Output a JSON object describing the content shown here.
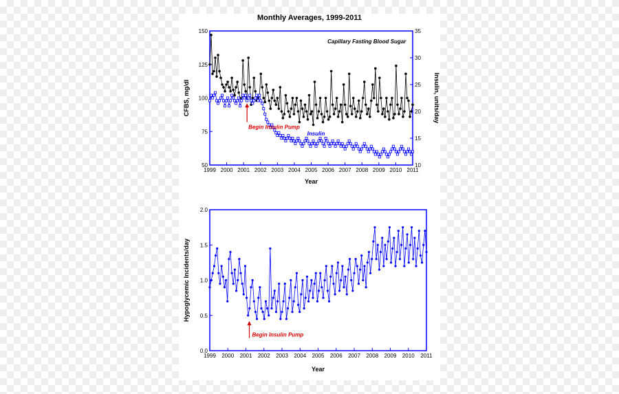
{
  "title": "Monthly Averages, 1999-2011",
  "x_years": [
    1999,
    2000,
    2001,
    2002,
    2003,
    2004,
    2005,
    2006,
    2007,
    2008,
    2009,
    2010,
    2011
  ],
  "top_chart": {
    "border_color": "#0000ff",
    "bg": "#ffffff",
    "x_label": "Year",
    "left_y": {
      "label": "CFBS, mg/dl",
      "min": 50,
      "max": 150,
      "ticks": [
        50,
        75,
        100,
        125,
        150
      ]
    },
    "right_y": {
      "label": "Insulin, units/day",
      "min": 10,
      "max": 35,
      "ticks": [
        10,
        15,
        20,
        25,
        30,
        35
      ]
    },
    "series_cfbs": {
      "label": "Capillary Fasting Blood Sugar",
      "color": "#000000",
      "marker": "filled-circle",
      "values": [
        125,
        147,
        118,
        120,
        130,
        116,
        132,
        120,
        115,
        110,
        108,
        105,
        110,
        112,
        108,
        105,
        115,
        106,
        102,
        108,
        112,
        104,
        100,
        98,
        128,
        110,
        105,
        100,
        130,
        108,
        95,
        100,
        115,
        105,
        98,
        100,
        102,
        118,
        108,
        100,
        97,
        110,
        104,
        98,
        92,
        100,
        106,
        98,
        95,
        100,
        92,
        108,
        90,
        85,
        88,
        102,
        96,
        90,
        86,
        92,
        100,
        88,
        95,
        100,
        90,
        82,
        98,
        92,
        86,
        95,
        90,
        84,
        102,
        88,
        90,
        80,
        112,
        95,
        85,
        90,
        100,
        88,
        82,
        86,
        100,
        90,
        84,
        86,
        120,
        95,
        88,
        92,
        100,
        86,
        90,
        95,
        82,
        110,
        95,
        88,
        86,
        118,
        94,
        88,
        100,
        92,
        86,
        90,
        98,
        85,
        90,
        100,
        112,
        95,
        88,
        92,
        86,
        98,
        110,
        100,
        122,
        95,
        90,
        115,
        100,
        88,
        92,
        86,
        100,
        90,
        84,
        95,
        100,
        85,
        88,
        124,
        95,
        88,
        92,
        100,
        86,
        90,
        118,
        100,
        98,
        86,
        90,
        95
      ]
    },
    "series_insulin": {
      "label": "Insulin",
      "color": "#0000ff",
      "marker": "open-square",
      "values": [
        22,
        23,
        22.5,
        23,
        23.5,
        22,
        21.5,
        22,
        22.5,
        23,
        22,
        21,
        22,
        22.5,
        21,
        22,
        23,
        22.5,
        22,
        21.5,
        22,
        22.5,
        21,
        22,
        23,
        22.5,
        23,
        22,
        22.5,
        23,
        22,
        21.5,
        22,
        22.5,
        23,
        22,
        23,
        22,
        21.5,
        20.5,
        19.5,
        18.5,
        18,
        17.5,
        17,
        17.5,
        17,
        16.5,
        16,
        15.5,
        16,
        15.5,
        15,
        15.5,
        15,
        14.5,
        15,
        15.5,
        15,
        14.5,
        15,
        14.5,
        14,
        14.5,
        15,
        14.5,
        14,
        13.5,
        14,
        14.5,
        15,
        14.5,
        14,
        13.5,
        14,
        14.5,
        14,
        13.5,
        14,
        14.5,
        15,
        14.5,
        14,
        13.5,
        15,
        14.5,
        14,
        13.5,
        14,
        14.5,
        14,
        13.5,
        14,
        14.5,
        14,
        13.5,
        14,
        13.5,
        13,
        13.5,
        14,
        14.5,
        14,
        13.5,
        13,
        13.5,
        14,
        13.5,
        13,
        12.5,
        13,
        13.5,
        14,
        13.5,
        13,
        12.5,
        13,
        13.5,
        13,
        12.5,
        12,
        12.5,
        12,
        11.5,
        12,
        12.5,
        13,
        12.5,
        12,
        11.5,
        12,
        12.5,
        13,
        13.5,
        13,
        12.5,
        12,
        12.5,
        13,
        13.5,
        13,
        12.5,
        12,
        12.5,
        13,
        12.5,
        12,
        12.5
      ]
    },
    "annotation": {
      "text": "Begin Insulin Pump",
      "x_year": 2001,
      "arrow_color": "#d00000"
    }
  },
  "bottom_chart": {
    "border_color": "#0000ff",
    "bg": "#ffffff",
    "x_label": "Year",
    "y": {
      "label": "Hypoglycemic Incidents/day",
      "min": 0,
      "max": 2.0,
      "ticks": [
        0,
        0.5,
        1.0,
        1.5,
        2.0
      ]
    },
    "series": {
      "color": "#0000ff",
      "marker": "filled-circle",
      "values": [
        0.9,
        1.0,
        1.1,
        1.2,
        1.35,
        1.45,
        1.1,
        0.95,
        1.2,
        1.05,
        0.9,
        1.0,
        0.7,
        1.3,
        1.4,
        1.1,
        0.95,
        1.15,
        0.85,
        1.0,
        1.3,
        1.1,
        0.95,
        0.8,
        1.2,
        0.75,
        0.5,
        0.6,
        0.9,
        1.0,
        0.7,
        0.55,
        0.45,
        0.75,
        0.9,
        0.6,
        0.55,
        0.45,
        0.7,
        0.6,
        0.5,
        1.45,
        0.6,
        0.75,
        0.85,
        0.55,
        0.7,
        0.95,
        0.45,
        0.55,
        0.7,
        0.95,
        0.45,
        0.6,
        0.75,
        1.0,
        0.55,
        0.7,
        0.9,
        1.1,
        0.65,
        0.55,
        0.8,
        1.0,
        0.6,
        0.75,
        1.05,
        0.7,
        0.85,
        1.0,
        0.75,
        0.95,
        1.1,
        0.7,
        0.85,
        1.1,
        0.9,
        0.75,
        1.0,
        1.2,
        0.85,
        0.7,
        1.05,
        1.2,
        0.95,
        0.8,
        1.1,
        1.25,
        0.85,
        1.0,
        1.2,
        0.9,
        1.05,
        0.8,
        1.15,
        1.3,
        1.0,
        0.85,
        1.1,
        1.3,
        1.2,
        0.95,
        1.15,
        1.35,
        1.0,
        1.2,
        0.9,
        1.25,
        1.4,
        1.1,
        1.3,
        1.55,
        1.75,
        1.3,
        1.5,
        1.15,
        1.4,
        1.6,
        1.2,
        1.5,
        1.3,
        1.55,
        1.75,
        1.25,
        1.45,
        1.6,
        1.2,
        1.4,
        1.7,
        1.3,
        1.5,
        1.75,
        1.2,
        1.45,
        1.65,
        1.25,
        1.5,
        1.75,
        1.3,
        1.6,
        1.2,
        1.45,
        1.7,
        1.35,
        1.25,
        1.5,
        1.7,
        1.4
      ]
    },
    "annotation": {
      "text": "Begin Insulin Pump",
      "x_year": 2001,
      "arrow_color": "#d00000"
    }
  }
}
